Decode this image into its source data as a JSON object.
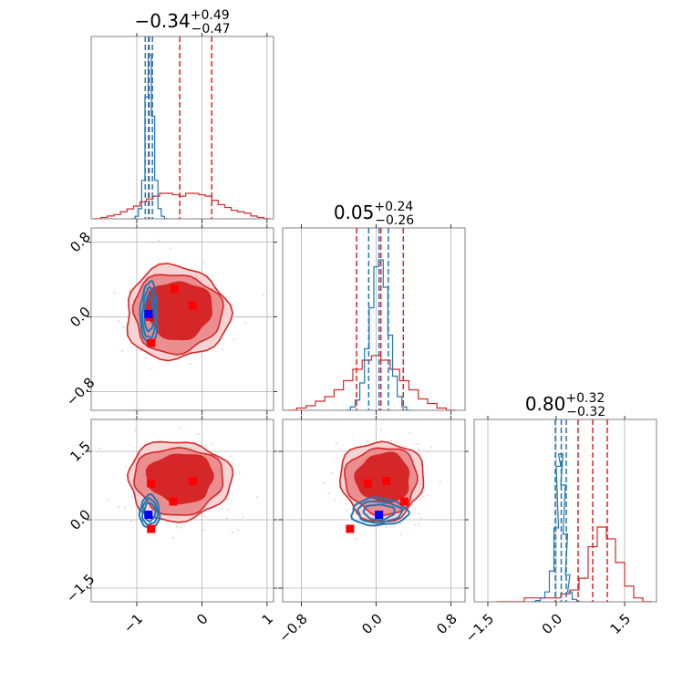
{
  "chart_data": {
    "type": "scatter",
    "layout": "corner-plot",
    "colors": {
      "red": "#d62728",
      "red_mid": "#ea8e8f",
      "red_light": "#f7d4d4",
      "blue": "#1f77b4",
      "red_marker": "#ff0000",
      "blue_marker": "#0000ff",
      "noise": "#f3b9c9"
    },
    "diagonal_titles": [
      {
        "main": "−0.34",
        "sup": "+0.49",
        "sub": "−0.47"
      },
      {
        "main": "0.05",
        "sup": "+0.24",
        "sub": "−0.26"
      },
      {
        "main": "0.80",
        "sup": "+0.32",
        "sub": "−0.32"
      }
    ],
    "params": [
      {
        "range": [
          -1.7,
          1.1
        ],
        "ticks": [
          -1,
          0,
          1
        ],
        "tick_labels": [
          "−1",
          "0",
          "1"
        ]
      },
      {
        "range": [
          -1.0,
          0.95
        ],
        "ticks": [
          -0.8,
          0.0,
          0.8
        ],
        "tick_labels": [
          "−0.8",
          "0.0",
          "0.8"
        ]
      },
      {
        "range": [
          -1.8,
          2.2
        ],
        "ticks": [
          -1.5,
          0.0,
          1.5
        ],
        "tick_labels": [
          "−1.5",
          "0.0",
          "1.5"
        ]
      }
    ],
    "red_quantiles": [
      [
        -0.81,
        -0.34,
        0.15
      ],
      [
        -0.21,
        0.05,
        0.29
      ],
      [
        0.48,
        0.8,
        1.12
      ]
    ],
    "blue_quantiles": [
      [
        -0.87,
        -0.82,
        -0.76
      ],
      [
        -0.08,
        0.03,
        0.13
      ],
      [
        -0.02,
        0.11,
        0.22
      ]
    ],
    "red_histograms": [
      {
        "x": [
          -1.6,
          -1.5,
          -1.4,
          -1.3,
          -1.2,
          -1.1,
          -1.0,
          -0.9,
          -0.8,
          -0.7,
          -0.6,
          -0.5,
          -0.4,
          -0.3,
          -0.2,
          -0.1,
          0.0,
          0.1,
          0.2,
          0.3,
          0.4,
          0.5,
          0.6,
          0.7,
          0.8,
          0.9,
          1.0
        ],
        "y": [
          0,
          1,
          2,
          3,
          5,
          7,
          9,
          12,
          14,
          16,
          18,
          18,
          17,
          16,
          18,
          18,
          17,
          16,
          13,
          10,
          8,
          6,
          5,
          4,
          2,
          1,
          0
        ]
      },
      {
        "x": [
          -0.9,
          -0.8,
          -0.7,
          -0.6,
          -0.5,
          -0.4,
          -0.3,
          -0.2,
          -0.1,
          0.0,
          0.1,
          0.2,
          0.3,
          0.4,
          0.5,
          0.6,
          0.7,
          0.8
        ],
        "y": [
          0,
          1,
          2,
          4,
          6,
          9,
          13,
          18,
          22,
          24,
          22,
          18,
          13,
          9,
          5,
          3,
          1,
          0
        ]
      },
      {
        "x": [
          -1.2,
          -1.0,
          -0.8,
          -0.6,
          -0.4,
          -0.2,
          0.0,
          0.2,
          0.4,
          0.6,
          0.8,
          1.0,
          1.2,
          1.4,
          1.6,
          1.8,
          2.0
        ],
        "y": [
          0,
          0,
          0,
          1,
          1,
          1,
          1,
          2,
          3,
          6,
          14,
          19,
          16,
          10,
          4,
          1,
          0
        ]
      }
    ],
    "blue_histograms": [
      {
        "x": [
          -1.05,
          -1.0,
          -0.95,
          -0.9,
          -0.85,
          -0.8,
          -0.75,
          -0.7,
          -0.65,
          -0.6,
          -0.55
        ],
        "y": [
          0,
          2,
          8,
          30,
          95,
          128,
          80,
          30,
          8,
          2,
          0
        ]
      },
      {
        "x": [
          -0.3,
          -0.25,
          -0.2,
          -0.15,
          -0.1,
          -0.05,
          0.0,
          0.05,
          0.1,
          0.15,
          0.2,
          0.25,
          0.3,
          0.35
        ],
        "y": [
          0,
          1,
          3,
          8,
          18,
          30,
          42,
          44,
          36,
          22,
          10,
          4,
          1,
          0
        ]
      },
      {
        "x": [
          -0.5,
          -0.4,
          -0.3,
          -0.2,
          -0.1,
          0.0,
          0.05,
          0.1,
          0.15,
          0.2,
          0.25,
          0.3,
          0.4,
          0.5
        ],
        "y": [
          0,
          1,
          3,
          8,
          25,
          60,
          110,
          120,
          95,
          55,
          22,
          8,
          2,
          0
        ]
      }
    ],
    "red_markers": [
      [
        {
          "x": -0.42,
          "y": 0.3
        },
        {
          "x": -0.14,
          "y": 0.12
        },
        {
          "x": -0.78,
          "y": -0.28
        },
        {
          "x": -0.8,
          "y": 0.0
        }
      ],
      [
        {
          "x": -0.78,
          "y": 0.8
        },
        {
          "x": -0.14,
          "y": 0.85
        },
        {
          "x": -0.44,
          "y": 0.4
        },
        {
          "x": -0.78,
          "y": -0.2
        }
      ],
      [
        {
          "x": -0.09,
          "y": 0.8
        },
        {
          "x": 0.11,
          "y": 0.85
        },
        {
          "x": 0.3,
          "y": 0.4
        },
        {
          "x": -0.28,
          "y": -0.2
        }
      ]
    ],
    "blue_markers": [
      {
        "x": -0.82,
        "y": 0.03
      },
      {
        "x": -0.82,
        "y": 0.11
      },
      {
        "x": 0.03,
        "y": 0.11
      }
    ],
    "red_contours": [
      {
        "cx": -0.39,
        "cy": 0.04,
        "rx": 1.1,
        "ry": 0.64
      },
      {
        "cx": -0.36,
        "cy": 0.86,
        "rx": 1.1,
        "ry": 1.12
      },
      {
        "cx": 0.06,
        "cy": 0.86,
        "rx": 0.62,
        "ry": 1.12
      }
    ],
    "blue_contours": [
      {
        "cx": -0.81,
        "cy": 0.03,
        "rx": 0.13,
        "ry": 0.34
      },
      {
        "cx": -0.8,
        "cy": 0.17,
        "rx": 0.15,
        "ry": 0.36
      },
      {
        "cx": 0.03,
        "cy": 0.17,
        "rx": 0.3,
        "ry": 0.3
      }
    ]
  }
}
